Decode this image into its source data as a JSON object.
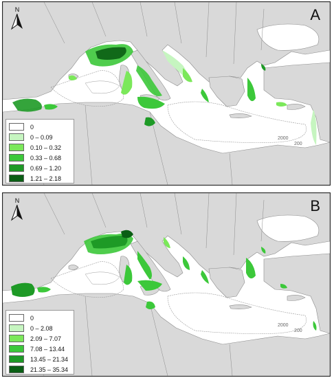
{
  "panels": [
    {
      "letter": "A",
      "north_label": "N",
      "contour_labels": [
        "2000",
        "200"
      ],
      "legend": [
        {
          "label": "0",
          "color": "#ffffff"
        },
        {
          "label": "0 – 0.09",
          "color": "#c6f5c0"
        },
        {
          "label": "0.10 – 0.32",
          "color": "#7be85a"
        },
        {
          "label": "0.33 – 0.68",
          "color": "#3cc83a"
        },
        {
          "label": "0.69 – 1.20",
          "color": "#1e9a26"
        },
        {
          "label": "1.21 – 2.18",
          "color": "#0a5e14"
        }
      ]
    },
    {
      "letter": "B",
      "north_label": "N",
      "contour_labels": [
        "2000",
        "200"
      ],
      "legend": [
        {
          "label": "0",
          "color": "#ffffff"
        },
        {
          "label": "0 – 2.08",
          "color": "#c6f5c0"
        },
        {
          "label": "2.09 – 7.07",
          "color": "#7be85a"
        },
        {
          "label": "7.08 – 13.44",
          "color": "#3cc83a"
        },
        {
          "label": "13.45 – 21.34",
          "color": "#1e9a26"
        },
        {
          "label": "21.35 – 35.34",
          "color": "#0a5e14"
        }
      ]
    }
  ],
  "colors": {
    "land": "#d9d9d9",
    "sea": "#ffffff",
    "border": "#8a8a8a",
    "contour": "#9a9a9a"
  }
}
